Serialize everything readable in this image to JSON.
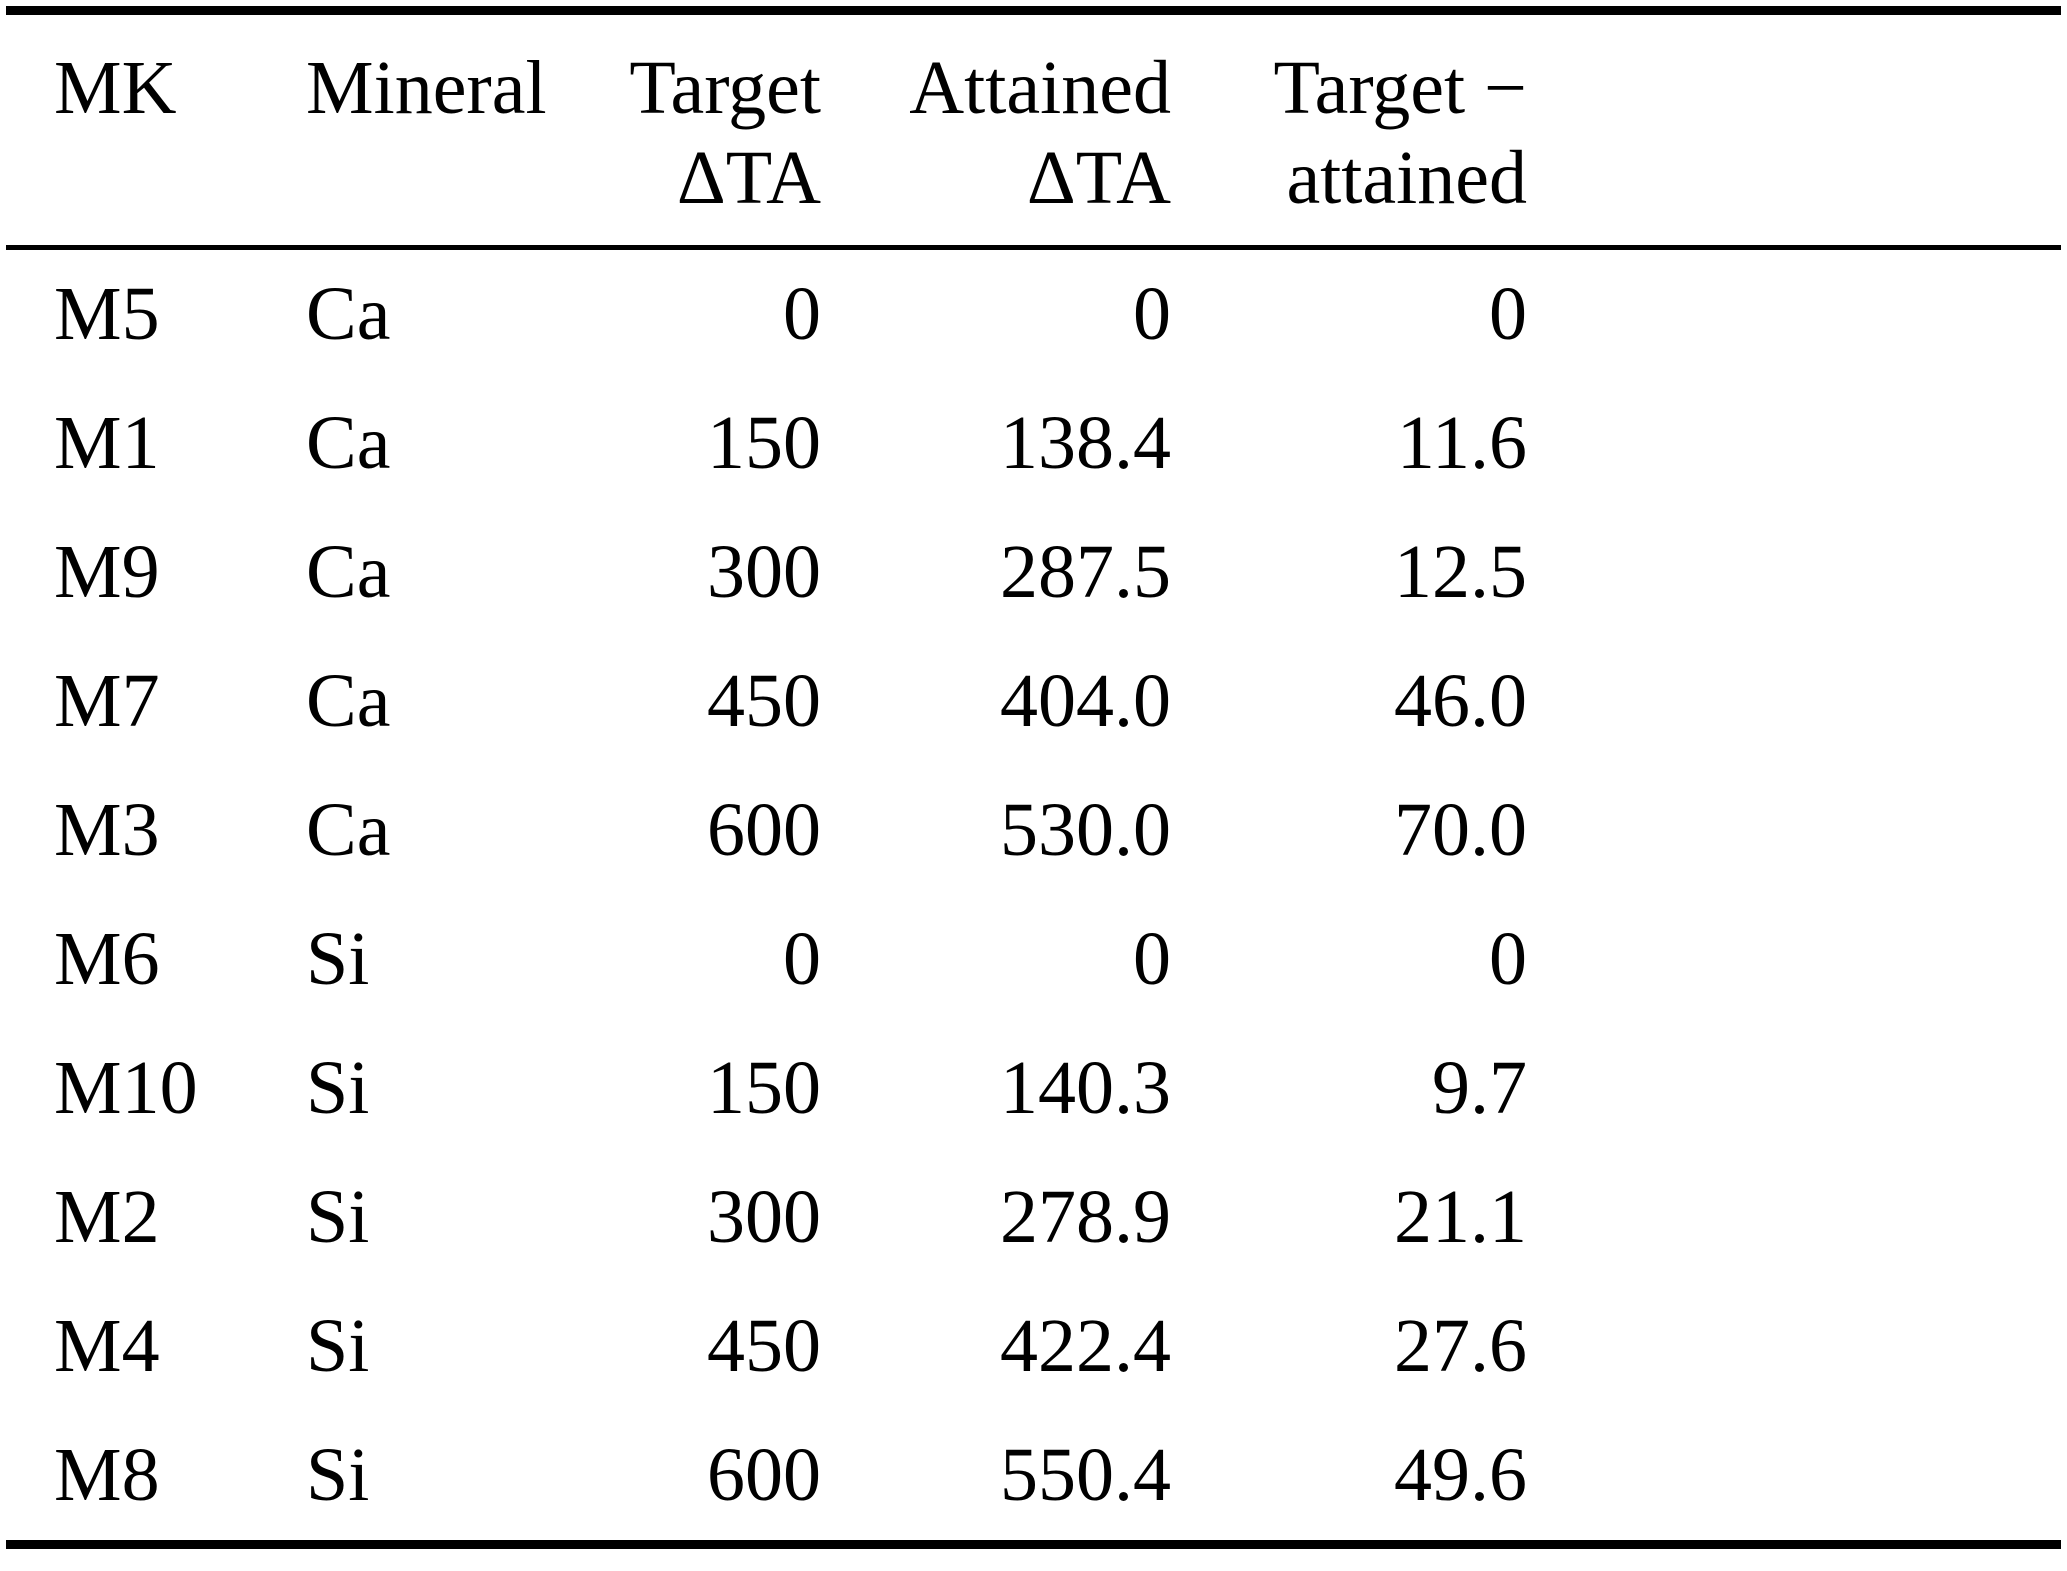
{
  "page": {
    "background": "#ffffff",
    "text_color": "#000000",
    "rule_color": "#000000"
  },
  "table": {
    "columns": [
      {
        "id": "mk",
        "lines": [
          "MK"
        ],
        "align": "left"
      },
      {
        "id": "mineral",
        "lines": [
          "Mineral"
        ],
        "align": "left"
      },
      {
        "id": "target-dta",
        "lines": [
          "Target",
          "ΔTA"
        ],
        "align": "right"
      },
      {
        "id": "attained-dta",
        "lines": [
          "Attained",
          "ΔTA"
        ],
        "align": "right"
      },
      {
        "id": "target-minus-attained",
        "lines": [
          "Target −",
          "attained"
        ],
        "align": "right"
      }
    ],
    "rows": [
      {
        "cells": [
          "M5",
          "Ca",
          "0",
          "0",
          "0"
        ]
      },
      {
        "cells": [
          "M1",
          "Ca",
          "150",
          "138.4",
          "11.6"
        ]
      },
      {
        "cells": [
          "M9",
          "Ca",
          "300",
          "287.5",
          "12.5"
        ]
      },
      {
        "cells": [
          "M7",
          "Ca",
          "450",
          "404.0",
          "46.0"
        ]
      },
      {
        "cells": [
          "M3",
          "Ca",
          "600",
          "530.0",
          "70.0"
        ]
      },
      {
        "cells": [
          "M6",
          "Si",
          "0",
          "0",
          "0"
        ]
      },
      {
        "cells": [
          "M10",
          "Si",
          "150",
          "140.3",
          "9.7"
        ]
      },
      {
        "cells": [
          "M2",
          "Si",
          "300",
          "278.9",
          "21.1"
        ]
      },
      {
        "cells": [
          "M4",
          "Si",
          "450",
          "422.4",
          "27.6"
        ]
      },
      {
        "cells": [
          "M8",
          "Si",
          "600",
          "550.4",
          "49.6"
        ]
      }
    ]
  }
}
